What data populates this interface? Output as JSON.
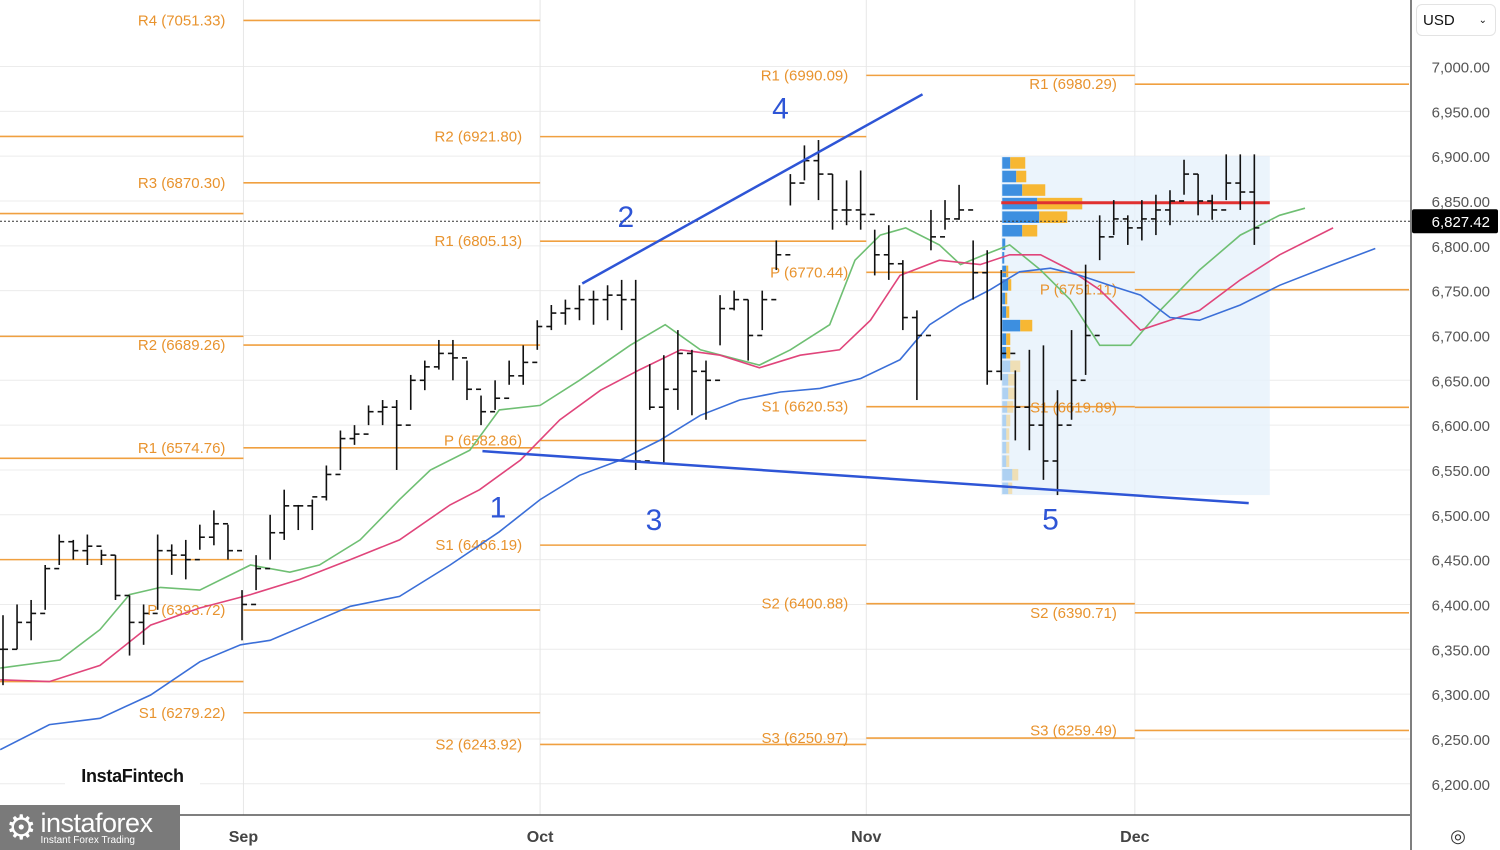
{
  "currency_selector": {
    "value": "USD"
  },
  "logos": {
    "fintech": "InstaFintech",
    "instaforex": "instaforex",
    "instaforex_tagline": "Instant Forex Trading"
  },
  "colors": {
    "pivot": "#f0a040",
    "pivot_text": "#e8932e",
    "ma_fast": "#6fbf73",
    "ma_mid": "#e0457b",
    "ma_slow": "#3b6fd8",
    "trend": "#2e55d6",
    "wave": "#2e55d6",
    "poc": "#e03030",
    "vp_blue": "#3d8fe0",
    "vp_orange": "#f7b733",
    "vp_area": "#e6f1fb"
  },
  "chart_data": {
    "type": "ohlc",
    "ylim": [
      6180,
      7070
    ],
    "y_ticks": [
      "7,000.00",
      "6,950.00",
      "6,900.00",
      "6,850.00",
      "6,800.00",
      "6,750.00",
      "6,700.00",
      "6,650.00",
      "6,600.00",
      "6,550.00",
      "6,500.00",
      "6,450.00",
      "6,400.00",
      "6,350.00",
      "6,300.00",
      "6,250.00",
      "6,200.00"
    ],
    "y_tick_values": [
      7000,
      6950,
      6900,
      6850,
      6800,
      6750,
      6700,
      6650,
      6600,
      6550,
      6500,
      6450,
      6400,
      6350,
      6300,
      6250,
      6200
    ],
    "x_ticks": [
      {
        "label": "Sep",
        "bar": 17.1
      },
      {
        "label": "Oct",
        "bar": 38.2
      },
      {
        "label": "Nov",
        "bar": 61.4
      },
      {
        "label": "Dec",
        "bar": 80.5
      }
    ],
    "last_price": {
      "label": "6,827.42",
      "value": 6827.42
    },
    "bars_hlc": [
      [
        6388,
        6310,
        6350
      ],
      [
        6400,
        6350,
        6380
      ],
      [
        6405,
        6360,
        6390
      ],
      [
        6444,
        6394,
        6440
      ],
      [
        6478,
        6444,
        6470
      ],
      [
        6472,
        6450,
        6460
      ],
      [
        6478,
        6444,
        6465
      ],
      [
        6461,
        6444,
        6455
      ],
      [
        6455,
        6405,
        6410
      ],
      [
        6410,
        6343,
        6380
      ],
      [
        6400,
        6355,
        6390
      ],
      [
        6478,
        6394,
        6460
      ],
      [
        6467,
        6433,
        6455
      ],
      [
        6472,
        6428,
        6450
      ],
      [
        6489,
        6461,
        6475
      ],
      [
        6505,
        6466,
        6490
      ],
      [
        6489,
        6450,
        6460
      ],
      [
        6416,
        6360,
        6400
      ],
      [
        6455,
        6416,
        6440
      ],
      [
        6500,
        6450,
        6480
      ],
      [
        6528,
        6472,
        6510
      ],
      [
        6511,
        6483,
        6510
      ],
      [
        6517,
        6483,
        6520
      ],
      [
        6555,
        6516,
        6545
      ],
      [
        6594,
        6550,
        6585
      ],
      [
        6600,
        6578,
        6590
      ],
      [
        6622,
        6600,
        6615
      ],
      [
        6628,
        6600,
        6620
      ],
      [
        6628,
        6550,
        6600
      ],
      [
        6656,
        6617,
        6650
      ],
      [
        6672,
        6639,
        6665
      ],
      [
        6695,
        6662,
        6680
      ],
      [
        6695,
        6650,
        6675
      ],
      [
        6672,
        6628,
        6640
      ],
      [
        6633,
        6600,
        6615
      ],
      [
        6650,
        6617,
        6630
      ],
      [
        6672,
        6645,
        6655
      ],
      [
        6689,
        6645,
        6670
      ],
      [
        6717,
        6684,
        6710
      ],
      [
        6734,
        6706,
        6725
      ],
      [
        6740,
        6712,
        6730
      ],
      [
        6756,
        6717,
        6740
      ],
      [
        6750,
        6712,
        6740
      ],
      [
        6756,
        6717,
        6745
      ],
      [
        6762,
        6706,
        6740
      ],
      [
        6762,
        6550,
        6560
      ],
      [
        6668,
        6617,
        6620
      ],
      [
        6678,
        6556,
        6640
      ],
      [
        6706,
        6617,
        6680
      ],
      [
        6684,
        6611,
        6660
      ],
      [
        6672,
        6606,
        6650
      ],
      [
        6745,
        6689,
        6730
      ],
      [
        6750,
        6728,
        6740
      ],
      [
        6740,
        6672,
        6700
      ],
      [
        6750,
        6706,
        6740
      ],
      [
        6806,
        6773,
        6790
      ],
      [
        6880,
        6845,
        6870
      ],
      [
        6912,
        6873,
        6895
      ],
      [
        6918,
        6851,
        6880
      ],
      [
        6880,
        6818,
        6840
      ],
      [
        6873,
        6823,
        6840
      ],
      [
        6884,
        6818,
        6835
      ],
      [
        6818,
        6767,
        6790
      ],
      [
        6823,
        6762,
        6780
      ],
      [
        6784,
        6706,
        6720
      ],
      [
        6728,
        6628,
        6700
      ],
      [
        6840,
        6795,
        6810
      ],
      [
        6851,
        6818,
        6830
      ],
      [
        6868,
        6829,
        6840
      ],
      [
        6806,
        6740,
        6770
      ],
      [
        6795,
        6645,
        6660
      ],
      [
        6773,
        6650,
        6680
      ],
      [
        6661,
        6583,
        6620
      ],
      [
        6684,
        6572,
        6600
      ],
      [
        6689,
        6539,
        6560
      ],
      [
        6639,
        6522,
        6600
      ],
      [
        6706,
        6606,
        6650
      ],
      [
        6779,
        6656,
        6700
      ],
      [
        6834,
        6784,
        6810
      ],
      [
        6851,
        6812,
        6830
      ],
      [
        6834,
        6801,
        6820
      ],
      [
        6851,
        6806,
        6830
      ],
      [
        6857,
        6812,
        6840
      ],
      [
        6862,
        6823,
        6850
      ],
      [
        6896,
        6857,
        6880
      ],
      [
        6880,
        6834,
        6850
      ],
      [
        6857,
        6829,
        6840
      ],
      [
        6902,
        6851,
        6870
      ],
      [
        6902,
        6840,
        6860
      ],
      [
        6902,
        6801,
        6820
      ]
    ],
    "moving_averages": [
      {
        "name": "fast",
        "points": [
          [
            -0.2,
            6329
          ],
          [
            4.05,
            6338
          ],
          [
            6.9,
            6372
          ],
          [
            9,
            6411
          ],
          [
            11.2,
            6419
          ],
          [
            14,
            6416
          ],
          [
            17.6,
            6444
          ],
          [
            20.4,
            6436
          ],
          [
            22.5,
            6444
          ],
          [
            25.4,
            6472
          ],
          [
            28.2,
            6517
          ],
          [
            30.4,
            6550
          ],
          [
            33.2,
            6572
          ],
          [
            35.3,
            6617
          ],
          [
            38.2,
            6622
          ],
          [
            41,
            6650
          ],
          [
            44.6,
            6689
          ],
          [
            47.1,
            6712
          ],
          [
            49.6,
            6684
          ],
          [
            53.8,
            6667
          ],
          [
            56,
            6684
          ],
          [
            58.8,
            6712
          ],
          [
            60.6,
            6784
          ],
          [
            62.4,
            6812
          ],
          [
            64.2,
            6820
          ],
          [
            66.6,
            6801
          ],
          [
            68.1,
            6779
          ],
          [
            69.8,
            6790
          ],
          [
            71.6,
            6801
          ],
          [
            73.8,
            6773
          ],
          [
            75.9,
            6740
          ],
          [
            78,
            6689
          ],
          [
            80.2,
            6689
          ],
          [
            82.3,
            6728
          ],
          [
            85.1,
            6773
          ],
          [
            88,
            6812
          ],
          [
            90.8,
            6834
          ],
          [
            92.6,
            6842
          ]
        ]
      },
      {
        "name": "mid",
        "points": [
          [
            -0.2,
            6316
          ],
          [
            3.3,
            6314
          ],
          [
            6.9,
            6332
          ],
          [
            10.5,
            6377
          ],
          [
            14,
            6396
          ],
          [
            17.6,
            6411
          ],
          [
            21.1,
            6428
          ],
          [
            24.7,
            6450
          ],
          [
            28.2,
            6472
          ],
          [
            31.8,
            6511
          ],
          [
            33.9,
            6528
          ],
          [
            36.8,
            6561
          ],
          [
            39.6,
            6606
          ],
          [
            42.5,
            6639
          ],
          [
            45.3,
            6662
          ],
          [
            48.2,
            6684
          ],
          [
            51,
            6678
          ],
          [
            53.8,
            6664
          ],
          [
            56.7,
            6678
          ],
          [
            59.5,
            6684
          ],
          [
            61.7,
            6717
          ],
          [
            63.8,
            6767
          ],
          [
            66.6,
            6784
          ],
          [
            69.5,
            6779
          ],
          [
            71.6,
            6790
          ],
          [
            73.8,
            6790
          ],
          [
            75.9,
            6773
          ],
          [
            78,
            6751
          ],
          [
            80.9,
            6706
          ],
          [
            83,
            6717
          ],
          [
            85.1,
            6728
          ],
          [
            88,
            6762
          ],
          [
            90.8,
            6790
          ],
          [
            94.6,
            6820
          ]
        ]
      },
      {
        "name": "slow",
        "points": [
          [
            -0.2,
            6238
          ],
          [
            3.3,
            6266
          ],
          [
            6.9,
            6273
          ],
          [
            10.5,
            6299
          ],
          [
            14,
            6336
          ],
          [
            16.9,
            6355
          ],
          [
            19,
            6360
          ],
          [
            21.1,
            6374
          ],
          [
            24.7,
            6398
          ],
          [
            28.2,
            6409
          ],
          [
            31.8,
            6444
          ],
          [
            35.3,
            6481
          ],
          [
            38.2,
            6517
          ],
          [
            41,
            6544
          ],
          [
            43.9,
            6561
          ],
          [
            46.7,
            6583
          ],
          [
            49.6,
            6611
          ],
          [
            52.4,
            6628
          ],
          [
            55.3,
            6637
          ],
          [
            58.1,
            6641
          ],
          [
            61,
            6652
          ],
          [
            63.8,
            6673
          ],
          [
            65.9,
            6712
          ],
          [
            68.1,
            6734
          ],
          [
            70.2,
            6751
          ],
          [
            72.3,
            6771
          ],
          [
            74.5,
            6775
          ],
          [
            76.6,
            6767
          ],
          [
            78.7,
            6756
          ],
          [
            80.9,
            6745
          ],
          [
            83,
            6720
          ],
          [
            85.1,
            6717
          ],
          [
            88,
            6734
          ],
          [
            90.8,
            6756
          ],
          [
            94.4,
            6778
          ],
          [
            97.6,
            6797
          ]
        ]
      }
    ],
    "pivot_periods": [
      {
        "start": -1,
        "end": 17.1,
        "levels": [
          {
            "label": "",
            "value": 6922
          },
          {
            "label": "",
            "value": 6836
          },
          {
            "label": "",
            "value": 6699
          },
          {
            "label": "",
            "value": 6563
          },
          {
            "label": "",
            "value": 6450
          },
          {
            "label": "",
            "value": 6314
          }
        ]
      },
      {
        "start": 17.1,
        "end": 38.2,
        "levels": [
          {
            "label": "R4 (7051.33)",
            "value": 7051.33
          },
          {
            "label": "R3 (6870.30)",
            "value": 6870.3
          },
          {
            "label": "R2 (6689.26)",
            "value": 6689.26
          },
          {
            "label": "R1 (6574.76)",
            "value": 6574.76
          },
          {
            "label": "P (6393.72)",
            "value": 6393.72
          },
          {
            "label": "S1 (6279.22)",
            "value": 6279.22
          }
        ]
      },
      {
        "start": 38.2,
        "end": 61.4,
        "levels": [
          {
            "label": "R2 (6921.80)",
            "value": 6921.8
          },
          {
            "label": "R1 (6805.13)",
            "value": 6805.13
          },
          {
            "label": "P (6582.86)",
            "value": 6582.86
          },
          {
            "label": "S1 (6466.19)",
            "value": 6466.19
          },
          {
            "label": "S2 (6243.92)",
            "value": 6243.92
          }
        ]
      },
      {
        "start": 61.4,
        "end": 80.5,
        "levels": [
          {
            "label": "R1 (6990.09)",
            "value": 6990.09
          },
          {
            "label": "P (6770.44)",
            "value": 6770.44
          },
          {
            "label": "S1 (6620.53)",
            "value": 6620.53
          },
          {
            "label": "S2 (6400.88)",
            "value": 6400.88
          },
          {
            "label": "S3 (6250.97)",
            "value": 6250.97
          }
        ]
      },
      {
        "start": 80.5,
        "end": 100,
        "levels": [
          {
            "label": "R1 (6980.29)",
            "value": 6980.29
          },
          {
            "label": "P (6751.11)",
            "value": 6751.11
          },
          {
            "label": "S1 (6619.89)",
            "value": 6619.89
          },
          {
            "label": "S2 (6390.71)",
            "value": 6390.71
          },
          {
            "label": "S3 (6259.49)",
            "value": 6259.49
          }
        ]
      }
    ],
    "trend_lines": [
      {
        "name": "upper",
        "from": [
          41.2,
          6758
        ],
        "to": [
          65.4,
          6969
        ]
      },
      {
        "name": "lower",
        "from": [
          34.1,
          6571
        ],
        "to": [
          88.6,
          6513
        ]
      }
    ],
    "wave_labels": [
      {
        "text": "1",
        "bar": 35.2,
        "price": 6508
      },
      {
        "text": "2",
        "bar": 44.3,
        "price": 6832
      },
      {
        "text": "3",
        "bar": 46.3,
        "price": 6494
      },
      {
        "text": "4",
        "bar": 55.3,
        "price": 6953
      },
      {
        "text": "5",
        "bar": 74.5,
        "price": 6495
      }
    ],
    "volume_profile": {
      "start": 71.0,
      "end": 90.1,
      "price_top": 6900,
      "price_bottom": 6522,
      "poc": 6848,
      "rows": [
        [
          8,
          15,
          1
        ],
        [
          14,
          10,
          1
        ],
        [
          20,
          23,
          1
        ],
        [
          35,
          45,
          1
        ],
        [
          37,
          28,
          1
        ],
        [
          20,
          15,
          1
        ],
        [
          3,
          0,
          1
        ],
        [
          2,
          0,
          1
        ],
        [
          4,
          2,
          1
        ],
        [
          6,
          3,
          1
        ],
        [
          3,
          2,
          1
        ],
        [
          4,
          3,
          1
        ],
        [
          18,
          12,
          1
        ],
        [
          4,
          4,
          1
        ],
        [
          4,
          4,
          1
        ],
        [
          8,
          10,
          0
        ],
        [
          6,
          8,
          0
        ],
        [
          6,
          8,
          0
        ],
        [
          5,
          6,
          0
        ],
        [
          4,
          4,
          0
        ],
        [
          4,
          3,
          0
        ],
        [
          4,
          3,
          0
        ],
        [
          4,
          3,
          0
        ],
        [
          10,
          6,
          0
        ],
        [
          6,
          4,
          0
        ]
      ]
    }
  }
}
